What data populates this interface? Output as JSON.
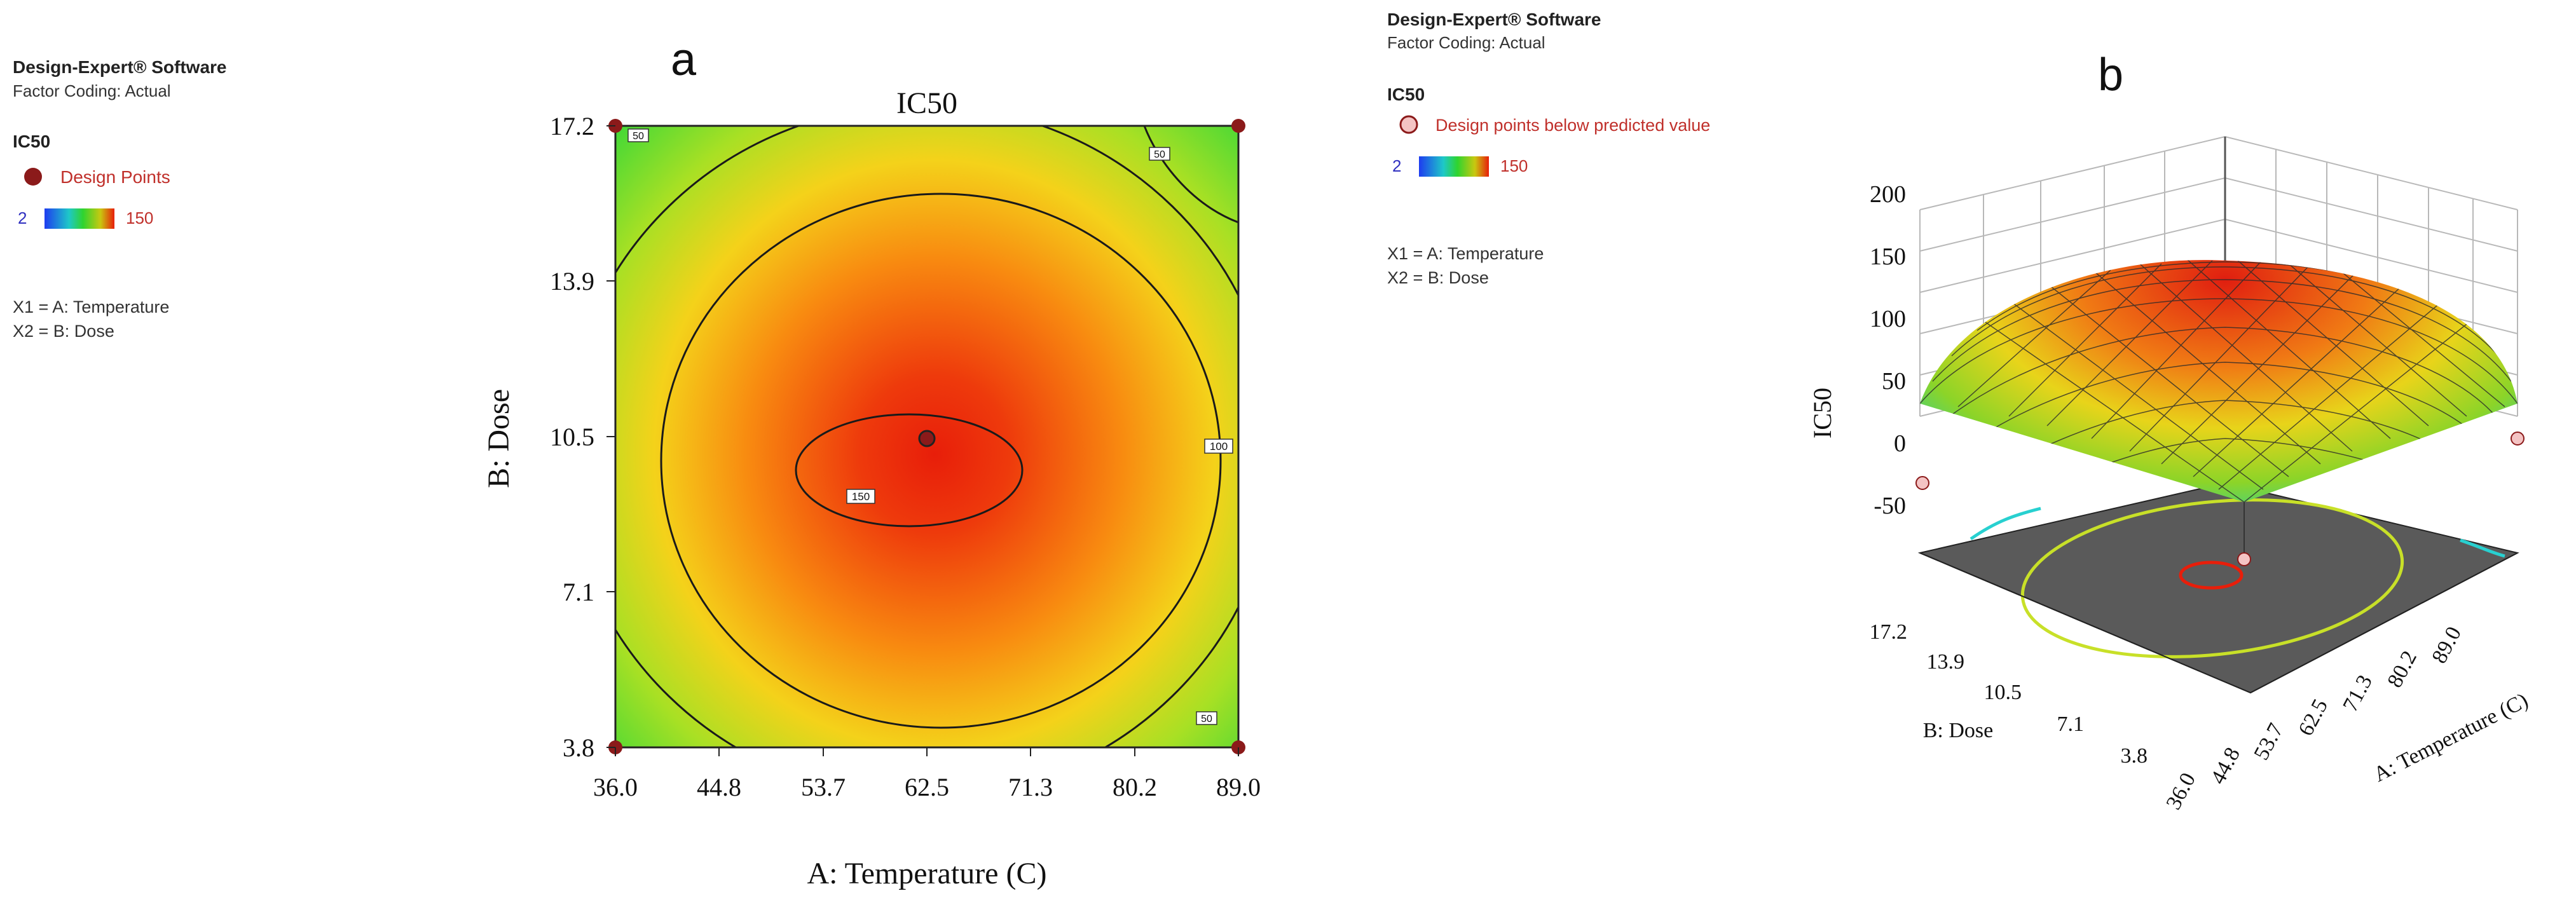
{
  "panel_a": {
    "letter": "a",
    "info": {
      "software": "Design-Expert® Software",
      "factor_coding": "Factor Coding: Actual",
      "response": "IC50",
      "points_label": "Design Points",
      "scale_min": "2",
      "scale_max": "150",
      "x1": "X1 = A: Temperature",
      "x2": "X2 = B: Dose"
    }
  },
  "panel_b": {
    "letter": "b",
    "info": {
      "software": "Design-Expert® Software",
      "factor_coding": "Factor Coding: Actual",
      "response": "IC50",
      "points_label": "Design points below predicted value",
      "scale_min": "2",
      "scale_max": "150",
      "x1": "X1 = A: Temperature",
      "x2": "X2 = B: Dose"
    }
  },
  "colors": {
    "low": "#1e64e6",
    "mid": "#2fd42f",
    "high": "#e81e0a",
    "point": "#8b1a1a",
    "floor": "#5a5a5a"
  },
  "chart_data": [
    {
      "type": "heatmap",
      "subtype": "contour",
      "title": "IC50",
      "xlabel": "A: Temperature (C)",
      "ylabel": "B: Dose",
      "xticks": [
        "36.0",
        "44.8",
        "53.7",
        "62.5",
        "71.3",
        "80.2",
        "89.0"
      ],
      "yticks": [
        "3.8",
        "7.1",
        "10.5",
        "13.9",
        "17.2"
      ],
      "xlim": [
        36.0,
        89.0
      ],
      "ylim": [
        3.8,
        17.2
      ],
      "contours": [
        {
          "level": 50,
          "label": "50"
        },
        {
          "level": 100,
          "label": "100"
        },
        {
          "level": 150,
          "label": "150"
        }
      ],
      "optimum": {
        "x": 62.5,
        "y": 10.5
      },
      "design_points": [
        {
          "x": 36.0,
          "y": 17.2
        },
        {
          "x": 89.0,
          "y": 17.2
        },
        {
          "x": 36.0,
          "y": 3.8
        },
        {
          "x": 89.0,
          "y": 3.8
        },
        {
          "x": 62.5,
          "y": 10.5
        }
      ],
      "grid": false
    },
    {
      "type": "surface",
      "zlabel": "IC50",
      "xlabel": "A: Temperature (C)",
      "ylabel": "B: Dose",
      "zticks": [
        "-50",
        "0",
        "50",
        "100",
        "150",
        "200"
      ],
      "xticks": [
        "36.0",
        "44.8",
        "53.7",
        "62.5",
        "71.3",
        "80.2",
        "89.0"
      ],
      "yticks": [
        "3.8",
        "7.1",
        "10.5",
        "13.9",
        "17.2"
      ],
      "zlim": [
        -50,
        200
      ],
      "peak_z": 150,
      "corner_z": 0,
      "grid": true
    }
  ]
}
